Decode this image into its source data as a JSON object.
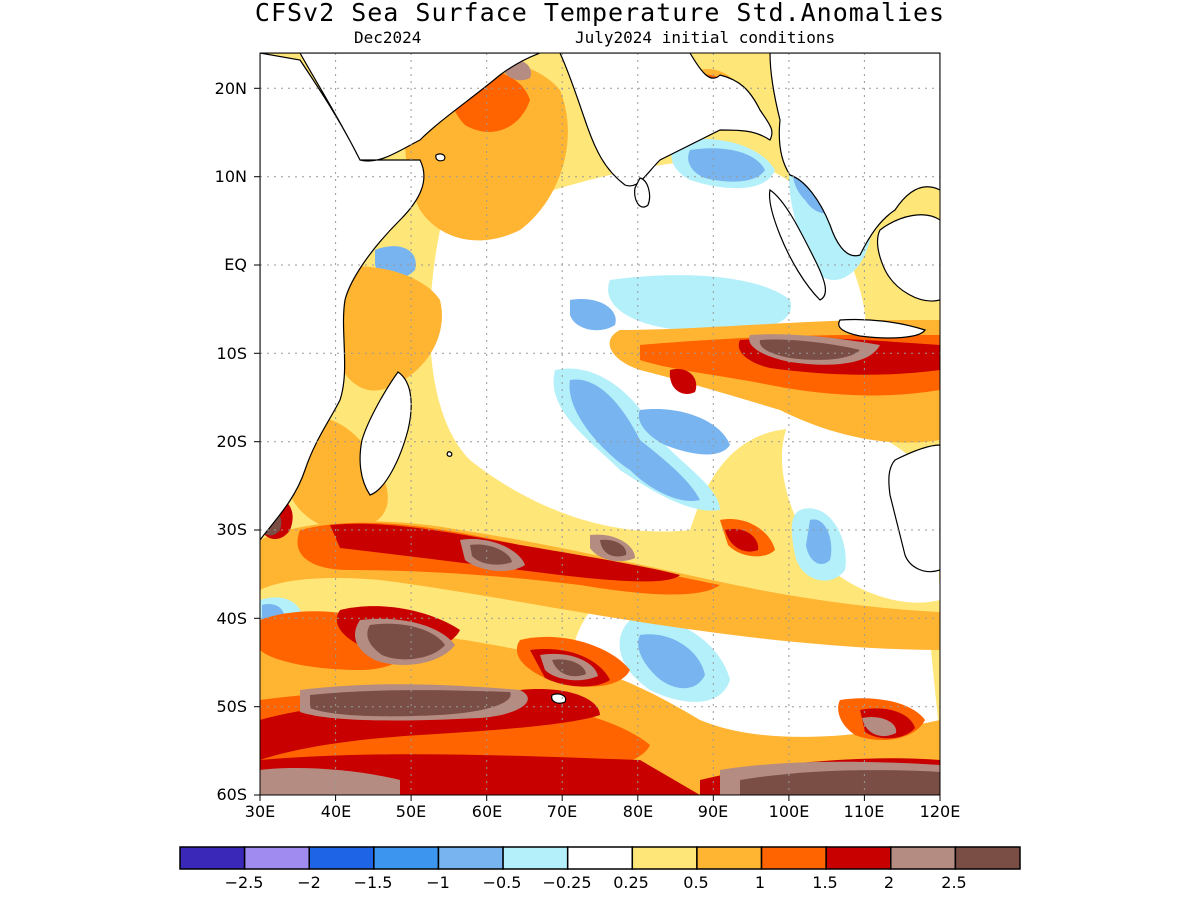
{
  "title": "CFSv2 Sea Surface Temperature Std.Anomalies",
  "valid_month": "Dec2024",
  "initial_conditions": "July2024 initial conditions",
  "lat_ticks": [
    "20N",
    "10N",
    "EQ",
    "10S",
    "20S",
    "30S",
    "40S",
    "50S",
    "60S"
  ],
  "lon_ticks": [
    "30E",
    "40E",
    "50E",
    "60E",
    "70E",
    "80E",
    "90E",
    "100E",
    "110E",
    "120E"
  ],
  "colorbar": {
    "labels": [
      "−2.5",
      "−2",
      "−1.5",
      "−1",
      "−0.5",
      "−0.25",
      "0.25",
      "0.5",
      "1",
      "1.5",
      "2",
      "2.5"
    ],
    "colors": [
      "#3a28b8",
      "#a08cf0",
      "#1e64e6",
      "#3c96f0",
      "#78b4f0",
      "#b4f0fa",
      "#ffffff",
      "#ffe678",
      "#ffb432",
      "#ff6400",
      "#c80000",
      "#b48c82",
      "#7a4e44"
    ]
  },
  "map": {
    "lon_range": [
      30,
      120
    ],
    "lat_range": [
      -60,
      24
    ],
    "land_color": "#ffffff",
    "coast_color": "#000000",
    "grid": "dotted"
  }
}
